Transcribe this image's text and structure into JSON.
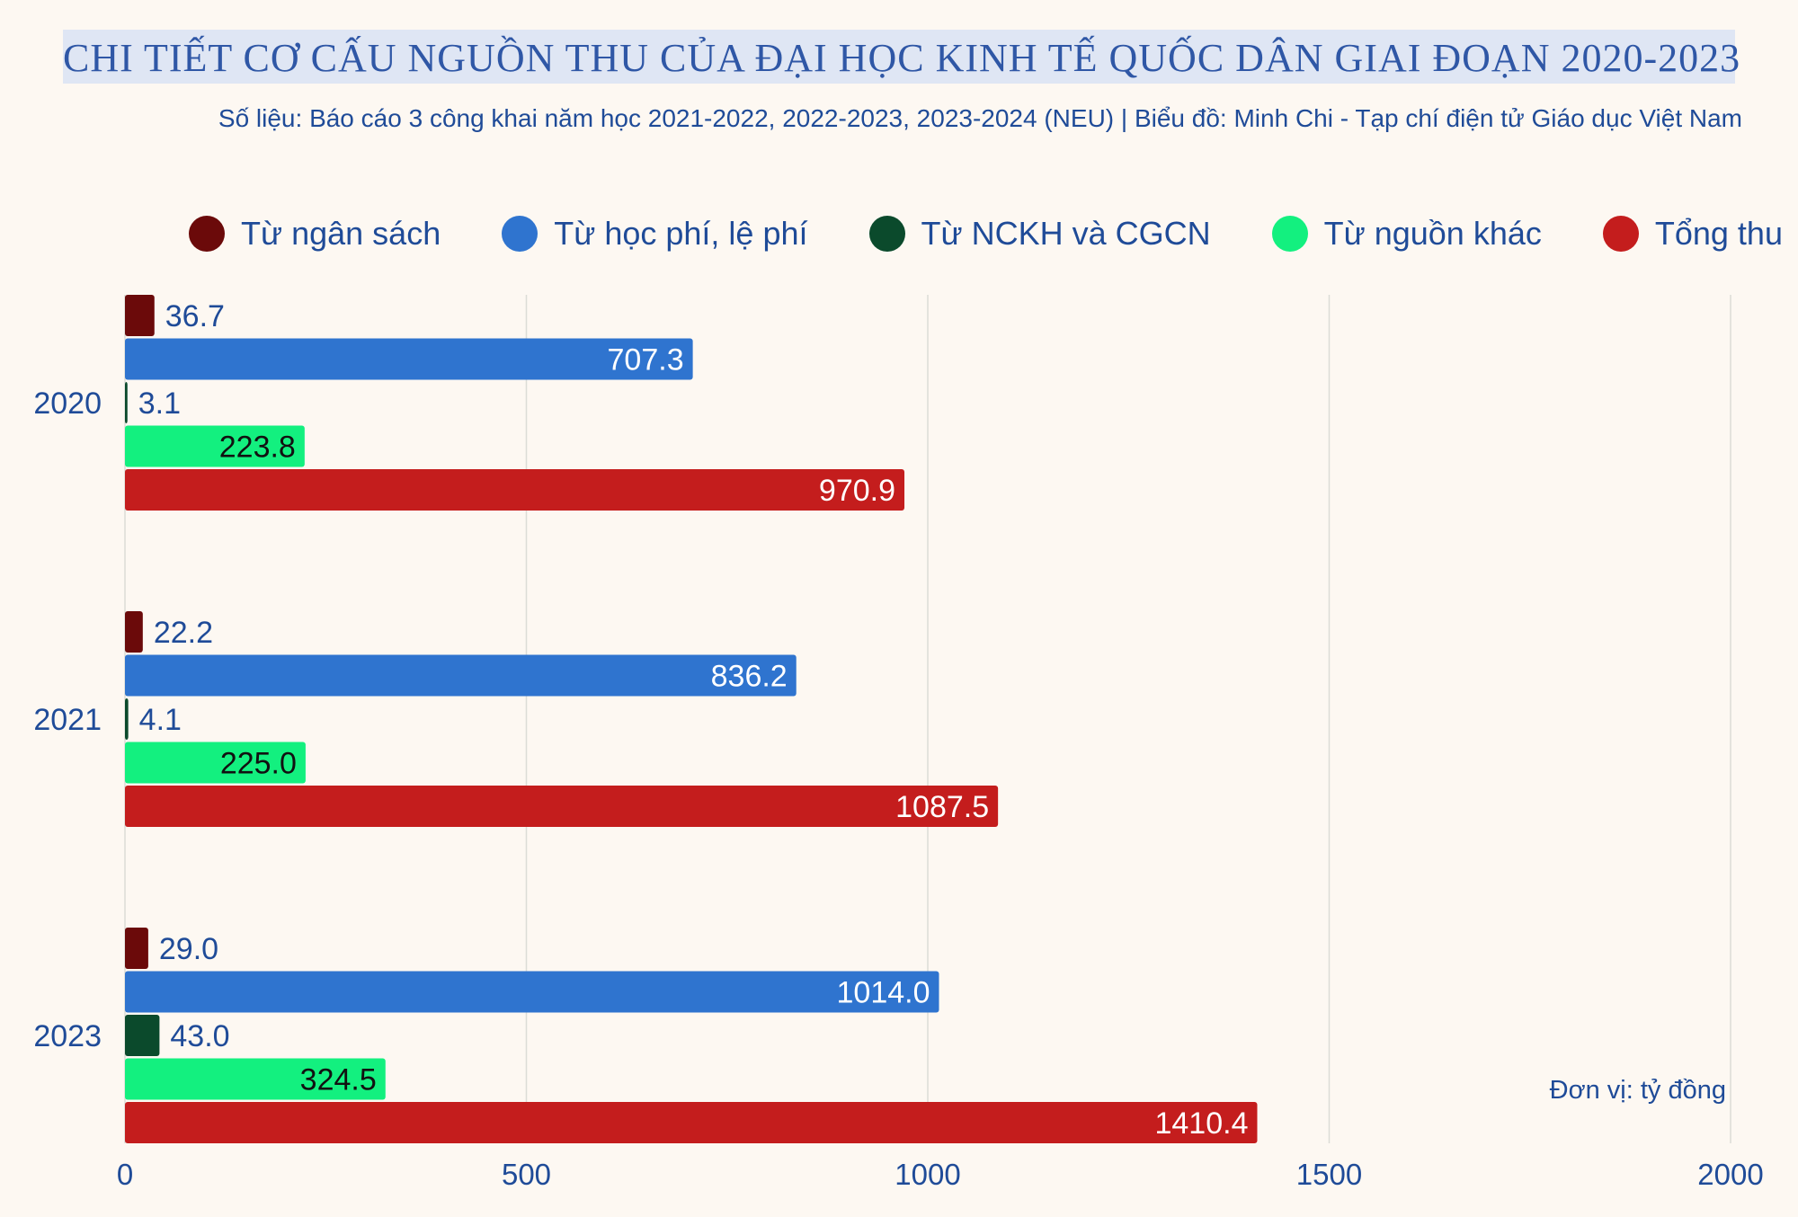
{
  "title": "CHI TIẾT CƠ CẤU NGUỒN THU CỦA ĐẠI HỌC KINH TẾ QUỐC DÂN GIAI ĐOẠN 2020-2023",
  "source": "Số liệu: Báo cáo 3 công khai năm học 2021-2022, 2022-2023, 2023-2024 (NEU)  |  Biểu đồ: Minh Chi - Tạp chí điện tử Giáo dục Việt Nam",
  "unit_note": "Đơn vị: tỷ đồng",
  "colors": {
    "background": "#fdf8f2",
    "text": "#1f4b98",
    "grid": "#dcdcd6"
  },
  "chart_data": {
    "type": "bar",
    "orientation": "horizontal",
    "categories": [
      "2020",
      "2021",
      "2023"
    ],
    "series": [
      {
        "name": "Từ ngân sách",
        "color": "#6b0a0a",
        "label_color": "#1f4b98",
        "values": [
          36.7,
          22.2,
          29.0
        ]
      },
      {
        "name": "Từ học phí, lệ phí",
        "color": "#2f74cf",
        "label_color": "#ffffff",
        "values": [
          707.3,
          836.2,
          1014.0
        ]
      },
      {
        "name": "Từ NCKH và CGCN",
        "color": "#0b4a2c",
        "label_color": "#1f4b98",
        "values": [
          3.1,
          4.1,
          43.0
        ]
      },
      {
        "name": "Từ nguồn khác",
        "color": "#13f07f",
        "label_color": "#111111",
        "values": [
          223.8,
          225.0,
          324.5
        ]
      },
      {
        "name": "Tổng thu",
        "color": "#c41d1d",
        "label_color": "#ffffff",
        "values": [
          970.9,
          1087.5,
          1410.4
        ]
      }
    ],
    "xlim": [
      0,
      2000
    ],
    "xticks": [
      0,
      500,
      1000,
      1500,
      2000
    ],
    "grid": true,
    "legend_position": "top"
  }
}
